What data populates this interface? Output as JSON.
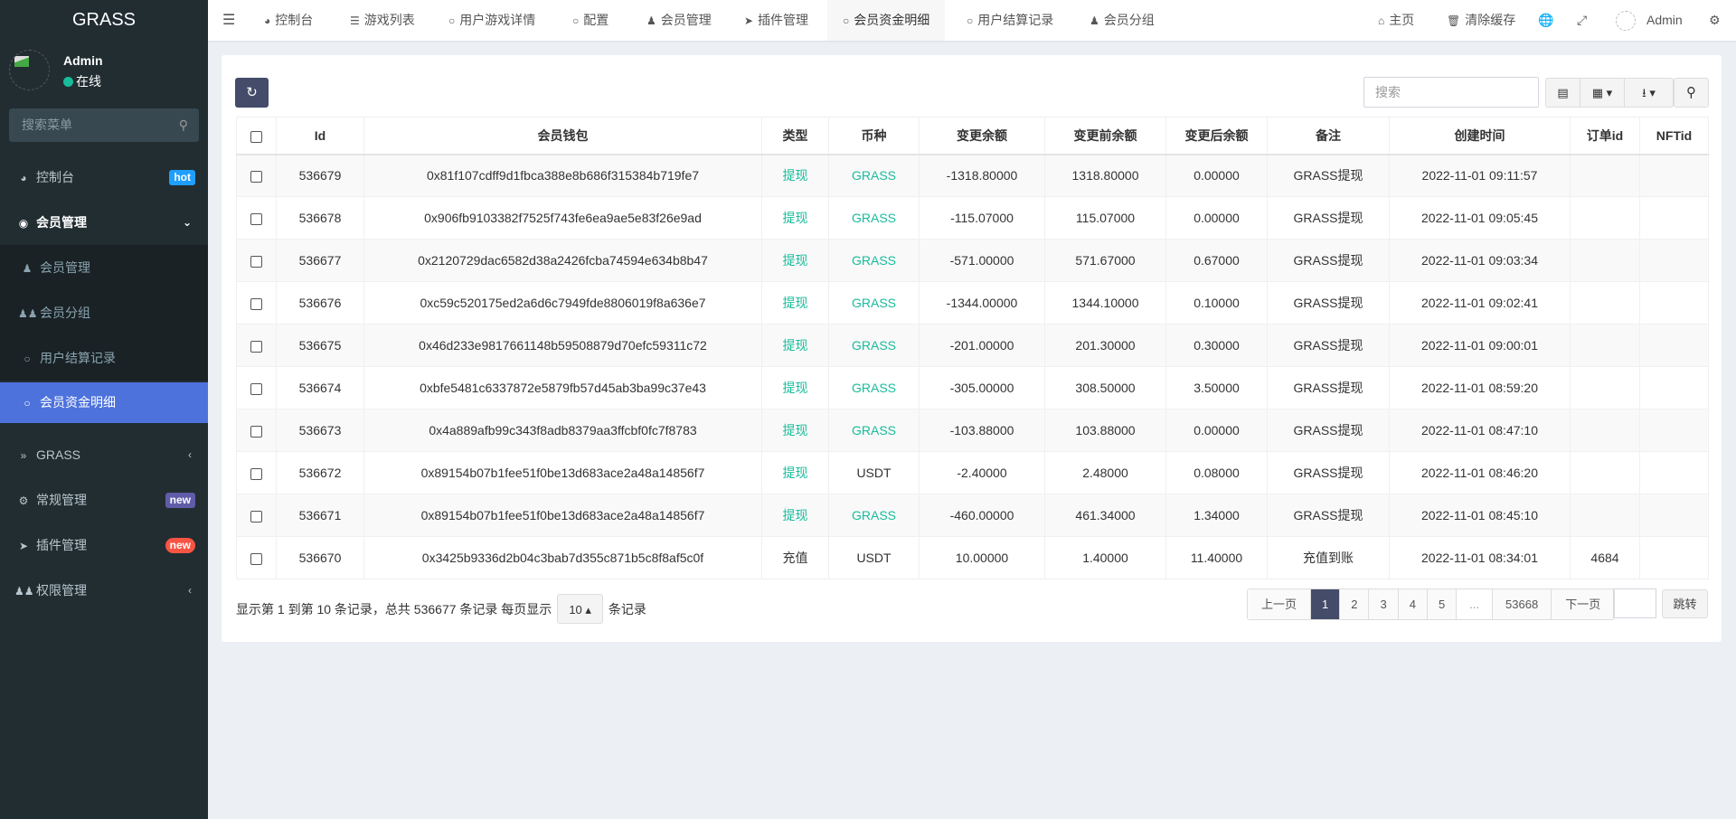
{
  "app": {
    "title": "GRASS"
  },
  "user": {
    "name": "Admin",
    "status": "在线"
  },
  "sidebar": {
    "search_placeholder": "搜索菜单",
    "items": [
      {
        "label": "控制台",
        "badge": "hot",
        "badge_color": "#1e9fff"
      },
      {
        "label": "会员管理"
      },
      {
        "label": "会员管理"
      },
      {
        "label": "会员分组"
      },
      {
        "label": "用户结算记录"
      },
      {
        "label": "会员资金明细"
      },
      {
        "label": "GRASS"
      },
      {
        "label": "常规管理",
        "badge": "new",
        "badge_color": "#605ca8"
      },
      {
        "label": "插件管理",
        "badge": "new",
        "badge_color": "#f75444"
      },
      {
        "label": "权限管理"
      }
    ]
  },
  "topnav": {
    "tabs": [
      "控制台",
      "游戏列表",
      "用户游戏详情",
      "配置",
      "会员管理",
      "插件管理",
      "会员资金明细",
      "用户结算记录",
      "会员分组"
    ],
    "home": "主页",
    "clear_cache": "清除缓存",
    "admin": "Admin"
  },
  "toolbar": {
    "search_placeholder": "搜索"
  },
  "table": {
    "headers": [
      "Id",
      "会员钱包",
      "类型",
      "币种",
      "变更余额",
      "变更前余额",
      "变更后余额",
      "备注",
      "创建时间",
      "订单id",
      "NFTid"
    ],
    "rows": [
      [
        "536679",
        "0x81f107cdff9d1fbca388e8b686f315384b719fe7",
        "提现",
        "GRASS",
        "-1318.80000",
        "1318.80000",
        "0.00000",
        "GRASS提现",
        "2022-11-01 09:11:57",
        "",
        ""
      ],
      [
        "536678",
        "0x906fb9103382f7525f743fe6ea9ae5e83f26e9ad",
        "提现",
        "GRASS",
        "-115.07000",
        "115.07000",
        "0.00000",
        "GRASS提现",
        "2022-11-01 09:05:45",
        "",
        ""
      ],
      [
        "536677",
        "0x2120729dac6582d38a2426fcba74594e634b8b47",
        "提现",
        "GRASS",
        "-571.00000",
        "571.67000",
        "0.67000",
        "GRASS提现",
        "2022-11-01 09:03:34",
        "",
        ""
      ],
      [
        "536676",
        "0xc59c520175ed2a6d6c7949fde8806019f8a636e7",
        "提现",
        "GRASS",
        "-1344.00000",
        "1344.10000",
        "0.10000",
        "GRASS提现",
        "2022-11-01 09:02:41",
        "",
        ""
      ],
      [
        "536675",
        "0x46d233e9817661148b59508879d70efc59311c72",
        "提现",
        "GRASS",
        "-201.00000",
        "201.30000",
        "0.30000",
        "GRASS提现",
        "2022-11-01 09:00:01",
        "",
        ""
      ],
      [
        "536674",
        "0xbfe5481c6337872e5879fb57d45ab3ba99c37e43",
        "提现",
        "GRASS",
        "-305.00000",
        "308.50000",
        "3.50000",
        "GRASS提现",
        "2022-11-01 08:59:20",
        "",
        ""
      ],
      [
        "536673",
        "0x4a889afb99c343f8adb8379aa3ffcbf0fc7f8783",
        "提现",
        "GRASS",
        "-103.88000",
        "103.88000",
        "0.00000",
        "GRASS提现",
        "2022-11-01 08:47:10",
        "",
        ""
      ],
      [
        "536672",
        "0x89154b07b1fee51f0be13d683ace2a48a14856f7",
        "提现",
        "USDT",
        "-2.40000",
        "2.48000",
        "0.08000",
        "GRASS提现",
        "2022-11-01 08:46:20",
        "",
        ""
      ],
      [
        "536671",
        "0x89154b07b1fee51f0be13d683ace2a48a14856f7",
        "提现",
        "GRASS",
        "-460.00000",
        "461.34000",
        "1.34000",
        "GRASS提现",
        "2022-11-01 08:45:10",
        "",
        ""
      ],
      [
        "536670",
        "0x3425b9336d2b04c3bab7d355c871b5c8f8af5c0f",
        "充值",
        "USDT",
        "10.00000",
        "1.40000",
        "11.40000",
        "充值到账",
        "2022-11-01 08:34:01",
        "4684",
        ""
      ]
    ]
  },
  "footer": {
    "summary": "显示第 1 到第 10 条记录，总共 536677 条记录 每页显示",
    "page_size": "10",
    "suffix": "条记录"
  },
  "pagination": {
    "prev": "上一页",
    "pages": [
      "1",
      "2",
      "3",
      "4",
      "5",
      "...",
      "53668"
    ],
    "current": "1",
    "next": "下一页",
    "jump_value": "",
    "jump": "跳转"
  },
  "colors": {
    "accent": "#18bc9c",
    "primary": "#444c69",
    "sidebar": "#222d32",
    "active": "#4e72dc"
  }
}
